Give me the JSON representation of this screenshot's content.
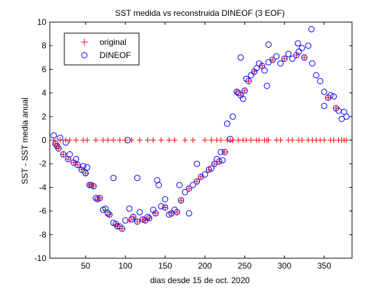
{
  "chart_data": {
    "type": "scatter",
    "title": "SST medida vs reconstruida DINEOF (3 EOF)",
    "xlabel": "dias desde 15 de oct. 2020",
    "ylabel": "SST - SST media anual",
    "xlim": [
      5,
      385
    ],
    "ylim": [
      -10,
      10
    ],
    "xticks": [
      50,
      100,
      150,
      200,
      250,
      300,
      350
    ],
    "yticks": [
      -10,
      -8,
      -6,
      -4,
      -2,
      0,
      2,
      4,
      6,
      8,
      10
    ],
    "grid": false,
    "legend_position": "top-left",
    "colors": {
      "original": "#ff0000",
      "dineof": "#0000ff"
    },
    "series": [
      {
        "name": "original",
        "marker": "plus",
        "x": [
          10,
          12,
          14,
          16,
          18,
          22,
          25,
          28,
          30,
          35,
          38,
          40,
          45,
          47,
          50,
          52,
          55,
          57,
          60,
          63,
          65,
          68,
          72,
          75,
          78,
          80,
          85,
          88,
          90,
          93,
          96,
          100,
          105,
          108,
          110,
          115,
          118,
          122,
          125,
          128,
          130,
          135,
          138,
          145,
          150,
          155,
          158,
          162,
          165,
          170,
          175,
          180,
          185,
          190,
          195,
          200,
          205,
          208,
          212,
          215,
          218,
          220,
          225,
          228,
          232,
          235,
          240,
          242,
          245,
          248,
          250,
          252,
          255,
          258,
          262,
          265,
          268,
          272,
          275,
          278,
          280,
          285,
          290,
          295,
          300,
          305,
          310,
          315,
          318,
          322,
          325,
          330,
          335,
          340,
          345,
          350,
          355,
          358,
          362,
          365,
          368,
          372,
          375,
          378
        ],
        "y": [
          0,
          -0.3,
          -0.5,
          -0.7,
          0,
          -1.2,
          0,
          -1.6,
          0,
          -1.9,
          0,
          -2.1,
          -2.5,
          0,
          -2.8,
          0,
          -3.8,
          -3.8,
          -3.9,
          0,
          -5.0,
          -4.9,
          0,
          -5.9,
          0,
          -6.3,
          0,
          -7.1,
          -7.3,
          0,
          -7.5,
          0,
          -6.8,
          0,
          -6.5,
          -6.9,
          0,
          -6.7,
          -6.8,
          0,
          -6.6,
          0,
          -6.2,
          0,
          -5.7,
          0,
          -6.2,
          0,
          -6.1,
          -5.1,
          0,
          -4.1,
          0,
          -3.5,
          -3.1,
          0,
          -2.5,
          0,
          -2.0,
          0,
          -1.8,
          0,
          -1.0,
          0,
          0,
          0,
          4.1,
          0,
          3.8,
          0,
          4.2,
          0,
          5.0,
          0,
          5.8,
          0,
          0,
          6.3,
          0,
          0,
          0,
          6.8,
          0,
          0,
          6.9,
          0,
          0,
          7.2,
          0,
          0,
          7.0,
          0,
          0,
          0,
          0,
          0,
          3.6,
          0,
          0,
          2.7,
          0,
          0,
          0,
          0
        ]
      },
      {
        "name": "DINEOF",
        "marker": "circle",
        "x": [
          10,
          12,
          14,
          16,
          18,
          22,
          25,
          28,
          30,
          35,
          38,
          40,
          45,
          47,
          50,
          52,
          55,
          57,
          60,
          63,
          65,
          68,
          72,
          75,
          78,
          80,
          85,
          88,
          90,
          93,
          96,
          100,
          105,
          108,
          110,
          115,
          118,
          122,
          125,
          128,
          130,
          135,
          138,
          145,
          150,
          155,
          158,
          162,
          165,
          170,
          175,
          180,
          185,
          190,
          195,
          200,
          205,
          208,
          212,
          215,
          218,
          220,
          225,
          228,
          232,
          235,
          240,
          242,
          245,
          248,
          250,
          252,
          255,
          258,
          262,
          265,
          268,
          272,
          275,
          278,
          280,
          285,
          290,
          295,
          300,
          305,
          310,
          315,
          318,
          322,
          325,
          330,
          335,
          340,
          345,
          350,
          355,
          358,
          362,
          365,
          368,
          372,
          375,
          378
        ],
        "y": [
          0.4,
          -0.3,
          -0.5,
          -0.7,
          0.2,
          -1.2,
          -0.2,
          -1.6,
          -1.2,
          -1.9,
          -1.6,
          -2.1,
          -2.5,
          -2.2,
          -2.8,
          -2.3,
          -3.8,
          -3.8,
          -3.9,
          -4.9,
          -5.0,
          -4.9,
          -5.9,
          -5.8,
          -6.2,
          -6.3,
          -7.0,
          -7.1,
          -7.3,
          -7.3,
          -7.5,
          -6.8,
          -5.8,
          -6.7,
          -6.5,
          -6.9,
          -6.1,
          -6.7,
          -6.8,
          -6.5,
          -6.6,
          -5.9,
          -6.2,
          -5.6,
          -5.7,
          -6.3,
          -6.2,
          -5.9,
          -6.1,
          -5.1,
          -4.4,
          -4.1,
          -3.8,
          -3.5,
          -3.1,
          -2.9,
          -2.5,
          -2.4,
          -2.0,
          -1.6,
          -1.8,
          -1.0,
          -1.0,
          1.4,
          0.1,
          2.0,
          4.1,
          4.0,
          3.8,
          3.5,
          4.2,
          5.2,
          5.0,
          5.5,
          5.8,
          6.1,
          6.5,
          6.3,
          5.9,
          4.6,
          6.6,
          6.8,
          7.1,
          6.5,
          6.9,
          7.3,
          6.9,
          7.2,
          7.5,
          7.8,
          7.0,
          8.0,
          6.5,
          5.5,
          5.0,
          4.1,
          3.6,
          3.8,
          3.7,
          2.7,
          2.5,
          1.8,
          2.4,
          2.0
        ],
        "extra_x": [
          50,
          85,
          103,
          115,
          140,
          142,
          150,
          168,
          180,
          190,
          222,
          245,
          280,
          317,
          334,
          350
        ],
        "extra_y": [
          -2.8,
          -3.2,
          0,
          -3.2,
          -3.4,
          -3.8,
          -5.0,
          -3.8,
          -6.2,
          -2.0,
          -1.7,
          7.0,
          8.1,
          8.2,
          9.4,
          2.9
        ]
      }
    ]
  }
}
